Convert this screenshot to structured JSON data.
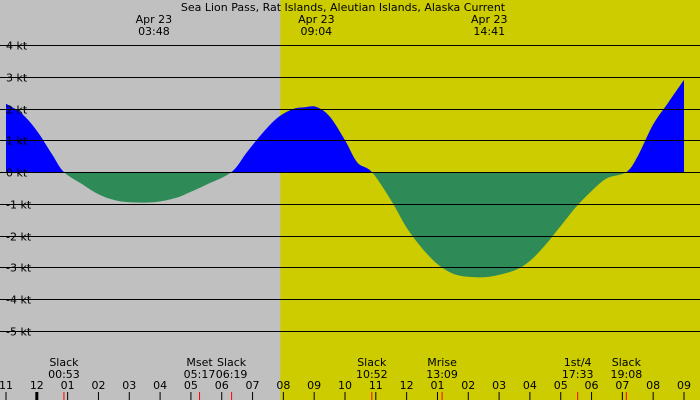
{
  "chart_data": {
    "type": "area",
    "title": "Sea Lion Pass, Rat Islands, Aleutian Islands, Alaska Current",
    "unit": "kt",
    "xlim": [
      11.0,
      33.0
    ],
    "ylim": [
      -5.5,
      4.2
    ],
    "y_ticks": [
      4,
      3,
      2,
      1,
      0,
      -1,
      -2,
      -3,
      -4,
      -5
    ],
    "y_tick_labels": [
      "4 kt",
      "3 kt",
      "2 kt",
      "1 kt",
      "0 kt",
      "-1 kt",
      "-2 kt",
      "-3 kt",
      "-4 kt",
      "-5 kt"
    ],
    "x_ticks": [
      11,
      12,
      13,
      14,
      15,
      16,
      17,
      18,
      19,
      20,
      21,
      22,
      23,
      24,
      25,
      26,
      27,
      28,
      29,
      30,
      31,
      32,
      33
    ],
    "x_tick_labels": [
      "11",
      "12",
      "01",
      "02",
      "03",
      "04",
      "05",
      "06",
      "07",
      "08",
      "09",
      "10",
      "11",
      "12",
      "01",
      "02",
      "03",
      "04",
      "05",
      "06",
      "07",
      "08",
      "09"
    ],
    "night_end_x": 19.9,
    "extremes": [
      {
        "date": "Apr 23",
        "time": "03:48",
        "x": 15.8,
        "value": -0.95
      },
      {
        "date": "Apr 23",
        "time": "09:04",
        "x": 21.07,
        "value": 2.05
      },
      {
        "date": "Apr 23",
        "time": "14:41",
        "x": 26.68,
        "value": -3.3
      }
    ],
    "series": [
      {
        "x": [
          11.0,
          11.5,
          12.0,
          12.5,
          12.88,
          13.5,
          14.0,
          14.5,
          15.0,
          15.8,
          16.5,
          17.0,
          17.5,
          18.32,
          18.8,
          19.3,
          19.8,
          20.3,
          20.7,
          21.07,
          21.5,
          22.0,
          22.4,
          22.87,
          23.5,
          24.0,
          24.5,
          25.0,
          25.5,
          26.0,
          26.68,
          27.5,
          28.0,
          28.5,
          29.0,
          29.5,
          30.0,
          30.5,
          31.13,
          31.5,
          32.0,
          32.5,
          33.0
        ],
        "y": [
          2.15,
          1.85,
          1.3,
          0.55,
          0.0,
          -0.4,
          -0.7,
          -0.88,
          -0.95,
          -0.95,
          -0.82,
          -0.62,
          -0.4,
          0.0,
          0.6,
          1.2,
          1.7,
          1.98,
          2.04,
          2.05,
          1.75,
          1.0,
          0.3,
          0.0,
          -0.9,
          -1.75,
          -2.4,
          -2.9,
          -3.2,
          -3.3,
          -3.3,
          -3.1,
          -2.8,
          -2.3,
          -1.7,
          -1.1,
          -0.6,
          -0.2,
          0.0,
          0.5,
          1.5,
          2.2,
          2.9
        ]
      }
    ],
    "events": [
      {
        "label": "Slack",
        "time": "00:53",
        "x": 12.88
      },
      {
        "label": "Mset",
        "time": "05:17",
        "x": 17.28
      },
      {
        "label": "Slack",
        "time": "06:19",
        "x": 18.32
      },
      {
        "label": "Slack",
        "time": "10:52",
        "x": 22.87
      },
      {
        "label": "Mrise",
        "time": "13:09",
        "x": 25.15
      },
      {
        "label": "1st/4",
        "time": "17:33",
        "x": 29.55
      },
      {
        "label": "Slack",
        "time": "19:08",
        "x": 31.13
      }
    ],
    "colors": {
      "night": "#c0c0c0",
      "day": "#cccc00",
      "flood": "#0000ff",
      "ebb": "#2e8b57",
      "grid": "#000000",
      "tick_mark": "#ff0000"
    }
  }
}
